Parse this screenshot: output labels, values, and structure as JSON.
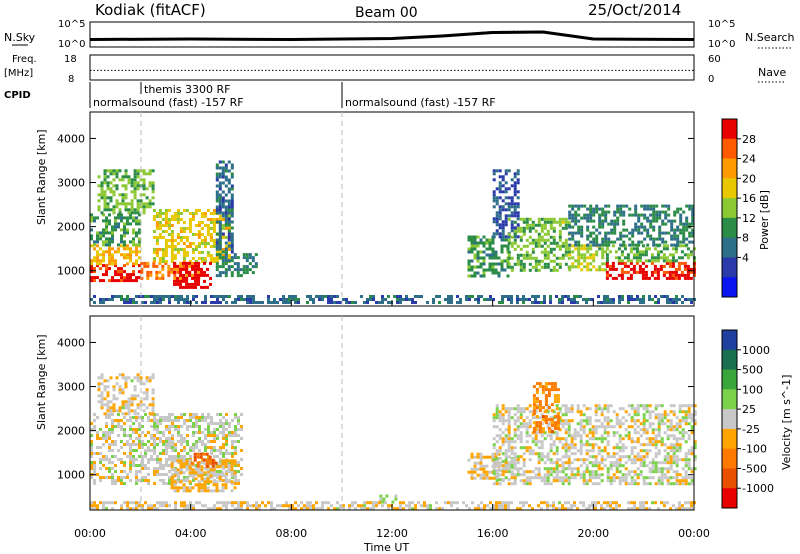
{
  "header": {
    "station": "Kodiak (fitACF)",
    "beam": "Beam 00",
    "date": "25/Oct/2014"
  },
  "top_panel": {
    "left_label": "N.Sky",
    "right_label": "N.Search",
    "left_ticks": [
      "10^5",
      "10^0"
    ],
    "right_ticks": [
      "10^5",
      "10^0"
    ]
  },
  "freq_panel": {
    "left_label_1": "Freq.",
    "left_label_2": "[MHz]",
    "right_label": "Nave",
    "left_ticks": [
      "18",
      "8"
    ],
    "right_ticks": [
      "60",
      "0"
    ]
  },
  "cpid": {
    "label": "CPID",
    "segments": [
      {
        "text": "normalsound (fast) -157 RF",
        "start_hour": 0
      },
      {
        "text": "themis 3300 RF",
        "start_hour": 2
      },
      {
        "text": "normalsound (fast) -157 RF",
        "start_hour": 10
      }
    ]
  },
  "power_colorbar": {
    "label": "Power [dB]",
    "ticks": [
      "28",
      "24",
      "20",
      "16",
      "12",
      "8",
      "4"
    ],
    "colors": [
      "#e80000",
      "#ff5a00",
      "#ff9a00",
      "#e8c800",
      "#8cc832",
      "#2a8c46",
      "#2d6e88",
      "#2a3aa8",
      "#0a14f0"
    ]
  },
  "velocity_colorbar": {
    "label": "Velocity [m s^-1]",
    "ticks": [
      "1000",
      "500",
      "100",
      "25",
      "-25",
      "-100",
      "-500",
      "-1000"
    ],
    "colors": [
      "#2040a0",
      "#1a6e50",
      "#3aa53a",
      "#7ad24a",
      "#c8c8c8",
      "#ffa500",
      "#ff7800",
      "#e85000",
      "#e80000"
    ]
  },
  "axes": {
    "ylabel": "Slant Range [km]",
    "xlabel": "Time UT",
    "yticks": [
      "4000",
      "3000",
      "2000",
      "1000"
    ],
    "xticks": [
      "00:00",
      "04:00",
      "08:00",
      "12:00",
      "16:00",
      "20:00",
      "00:00"
    ]
  },
  "chart_data": [
    {
      "type": "heatmap",
      "title": "",
      "quantity": "Power",
      "unit": "dB",
      "x_range_hours": [
        0,
        24
      ],
      "ylim": [
        200,
        4600
      ],
      "color_range": [
        0,
        30
      ],
      "regions": [
        {
          "x_hours": [
            0.0,
            2.0
          ],
          "y": [
            800,
            1150
          ],
          "value": 28
        },
        {
          "x_hours": [
            0.0,
            2.0
          ],
          "y": [
            1150,
            1600
          ],
          "value": 20
        },
        {
          "x_hours": [
            0.0,
            2.0
          ],
          "y": [
            1600,
            2300
          ],
          "value": 12
        },
        {
          "x_hours": [
            0.3,
            2.5
          ],
          "y": [
            2300,
            3300
          ],
          "value": 14
        },
        {
          "x_hours": [
            2.0,
            4.3
          ],
          "y": [
            850,
            1200
          ],
          "value": 24
        },
        {
          "x_hours": [
            2.5,
            5.5
          ],
          "y": [
            1200,
            2400
          ],
          "value": 18
        },
        {
          "x_hours": [
            3.3,
            4.8
          ],
          "y": [
            650,
            1200
          ],
          "value": 30
        },
        {
          "x_hours": [
            5.0,
            6.6
          ],
          "y": [
            900,
            1400
          ],
          "value": 10
        },
        {
          "x_hours": [
            5.0,
            5.7
          ],
          "y": [
            1400,
            3500
          ],
          "value": 8
        },
        {
          "x_hours": [
            0.0,
            24.0
          ],
          "y": [
            250,
            450
          ],
          "value": 8
        },
        {
          "x_hours": [
            15.0,
            16.6
          ],
          "y": [
            900,
            1800
          ],
          "value": 12
        },
        {
          "x_hours": [
            16.0,
            17.0
          ],
          "y": [
            1800,
            3300
          ],
          "value": 6
        },
        {
          "x_hours": [
            16.6,
            19.0
          ],
          "y": [
            1000,
            2200
          ],
          "value": 14
        },
        {
          "x_hours": [
            19.0,
            20.5
          ],
          "y": [
            1000,
            1600
          ],
          "value": 16
        },
        {
          "x_hours": [
            20.5,
            24.0
          ],
          "y": [
            800,
            1200
          ],
          "value": 28
        },
        {
          "x_hours": [
            20.5,
            24.0
          ],
          "y": [
            1200,
            1600
          ],
          "value": 14
        },
        {
          "x_hours": [
            19.0,
            24.0
          ],
          "y": [
            1600,
            2500
          ],
          "value": 10
        }
      ]
    },
    {
      "type": "heatmap",
      "title": "",
      "quantity": "Velocity",
      "unit": "m s^-1",
      "x_range_hours": [
        0,
        24
      ],
      "ylim": [
        200,
        4600
      ],
      "color_range": [
        -1000,
        1000
      ],
      "regions": [
        {
          "x_hours": [
            0.0,
            6.0
          ],
          "y": [
            800,
            2400
          ],
          "value": 0
        },
        {
          "x_hours": [
            0.3,
            2.5
          ],
          "y": [
            2400,
            3300
          ],
          "value": -60
        },
        {
          "x_hours": [
            3.2,
            5.8
          ],
          "y": [
            650,
            1350
          ],
          "value": -150
        },
        {
          "x_hours": [
            4.0,
            5.0
          ],
          "y": [
            1200,
            1500
          ],
          "value": -600
        },
        {
          "x_hours": [
            11.5,
            12.2
          ],
          "y": [
            400,
            550
          ],
          "value": 150
        },
        {
          "x_hours": [
            15.0,
            16.3
          ],
          "y": [
            900,
            1500
          ],
          "value": -150
        },
        {
          "x_hours": [
            16.0,
            17.0
          ],
          "y": [
            900,
            1400
          ],
          "value": 120
        },
        {
          "x_hours": [
            16.0,
            24.0
          ],
          "y": [
            800,
            2600
          ],
          "value": 0
        },
        {
          "x_hours": [
            17.6,
            18.6
          ],
          "y": [
            2000,
            3100
          ],
          "value": -400
        },
        {
          "x_hours": [
            0.0,
            24.0
          ],
          "y": [
            250,
            400
          ],
          "value": -60
        }
      ]
    },
    {
      "type": "line",
      "title": "",
      "panel": "N.Sky / N.Search",
      "x_range_hours": [
        0,
        24
      ],
      "series": [
        {
          "name": "N.Sky",
          "x_hours": [
            0,
            4,
            8,
            12,
            14,
            16,
            18,
            20,
            24
          ],
          "values": [
            1.5,
            1.6,
            1.5,
            1.7,
            2.2,
            2.9,
            3.0,
            1.6,
            1.5
          ]
        },
        {
          "name": "N.Search",
          "x_hours": [
            0,
            4,
            8,
            12,
            14,
            16,
            18,
            20,
            24
          ],
          "values": [
            1.4,
            1.5,
            1.4,
            1.6,
            2.4,
            3.1,
            3.2,
            1.5,
            1.4
          ]
        }
      ]
    },
    {
      "type": "line",
      "title": "",
      "panel": "Freq / Nave",
      "x_range_hours": [
        0,
        24
      ],
      "series": [
        {
          "name": "Nave",
          "x_hours": [
            0,
            24
          ],
          "values": [
            23,
            23
          ]
        }
      ]
    }
  ]
}
